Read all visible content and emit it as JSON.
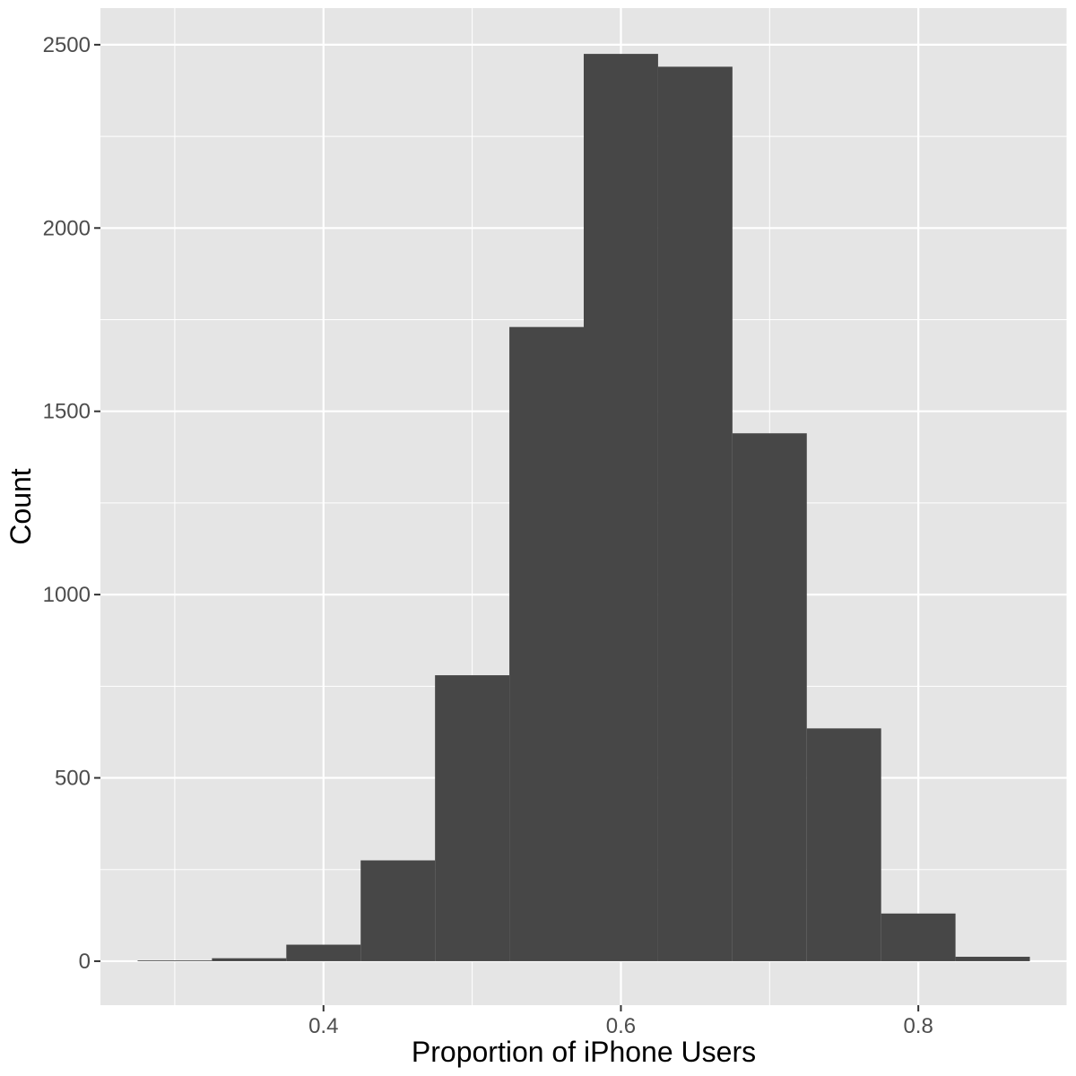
{
  "chart_data": {
    "type": "histogram",
    "title": "",
    "xlabel": "Proportion of iPhone Users",
    "ylabel": "Count",
    "xlim": [
      0.25,
      0.9
    ],
    "ylim": [
      -120,
      2600
    ],
    "grid": true,
    "x_ticks": [
      0.4,
      0.6,
      0.8
    ],
    "x_tick_labels": [
      "0.4",
      "0.6",
      "0.8"
    ],
    "y_ticks": [
      0,
      500,
      1000,
      1500,
      2000,
      2500
    ],
    "y_tick_labels": [
      "0",
      "500",
      "1000",
      "1500",
      "2000",
      "2500"
    ],
    "bin_width": 0.05,
    "bins": [
      {
        "x0": 0.275,
        "x1": 0.325,
        "count": 2
      },
      {
        "x0": 0.325,
        "x1": 0.375,
        "count": 8
      },
      {
        "x0": 0.375,
        "x1": 0.425,
        "count": 45
      },
      {
        "x0": 0.425,
        "x1": 0.475,
        "count": 275
      },
      {
        "x0": 0.475,
        "x1": 0.525,
        "count": 780
      },
      {
        "x0": 0.525,
        "x1": 0.575,
        "count": 1730
      },
      {
        "x0": 0.575,
        "x1": 0.625,
        "count": 2475
      },
      {
        "x0": 0.625,
        "x1": 0.675,
        "count": 2440
      },
      {
        "x0": 0.675,
        "x1": 0.725,
        "count": 1440
      },
      {
        "x0": 0.725,
        "x1": 0.775,
        "count": 635
      },
      {
        "x0": 0.775,
        "x1": 0.825,
        "count": 130
      },
      {
        "x0": 0.825,
        "x1": 0.875,
        "count": 12
      }
    ],
    "colors": {
      "panel_background": "#e5e5e5",
      "grid_major": "#ffffff",
      "bar_fill": "#474747",
      "tick_text": "#4d4d4d",
      "tick_mark": "#333333"
    }
  }
}
